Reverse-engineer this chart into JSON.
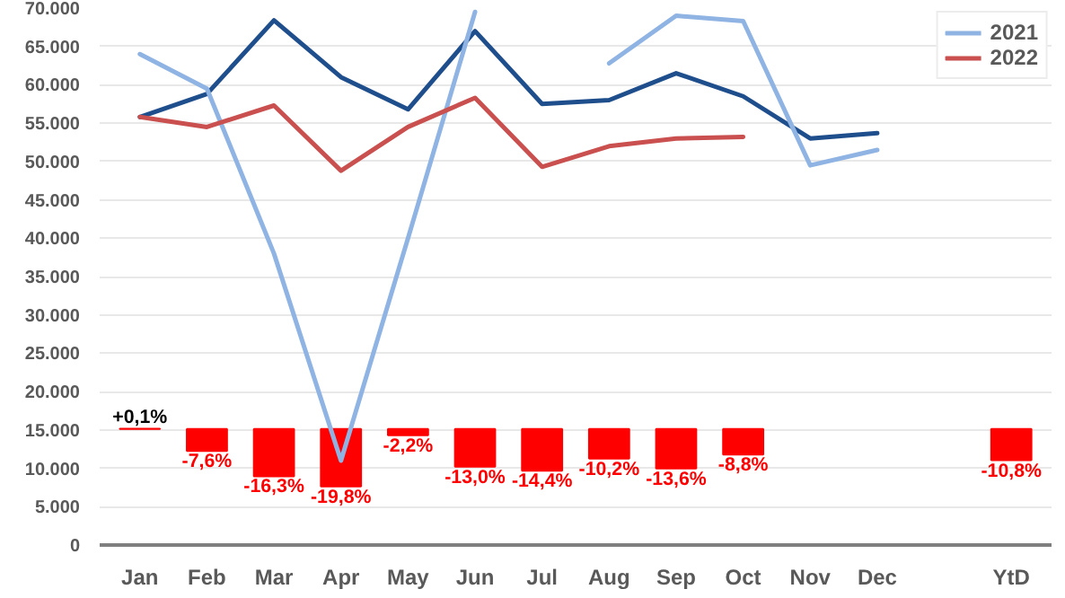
{
  "chart_data": {
    "type": "line",
    "categories": [
      "Jan",
      "Feb",
      "Mar",
      "Apr",
      "May",
      "Jun",
      "Jul",
      "Aug",
      "Sep",
      "Oct",
      "Nov",
      "Dec",
      null,
      "YtD"
    ],
    "series": [
      {
        "type": "bar",
        "axis": "y2",
        "color": "#ff0000",
        "values": [
          0.1,
          -7.6,
          -16.3,
          -19.8,
          -2.2,
          -13.0,
          -14.4,
          -10.2,
          -13.6,
          -8.8,
          null,
          null,
          null,
          -10.8
        ],
        "value_labels": [
          "+0,1%",
          "-7,6%",
          "-16,3%",
          "-19,8%",
          "-2,2%",
          "-13,0%",
          "-14,4%",
          "-10,2%",
          "-13,6%",
          "-8,8%",
          null,
          null,
          null,
          "-10,8%"
        ]
      },
      {
        "color": "#1f4e8c",
        "values": [
          55800,
          58800,
          68400,
          61000,
          56800,
          67000,
          57500,
          58000,
          61500,
          58500,
          53000,
          53700,
          null,
          null
        ]
      },
      {
        "name": "2021",
        "color": "#8fb4e3",
        "values": [
          64000,
          59500,
          38000,
          11000,
          40000,
          69500,
          null,
          62800,
          69000,
          68300,
          49500,
          51500,
          null,
          null
        ]
      },
      {
        "name": "2022",
        "color": "#c9504f",
        "values": [
          55800,
          54500,
          57300,
          48800,
          54500,
          58300,
          49300,
          52000,
          53000,
          53200,
          null,
          null,
          null,
          null
        ]
      }
    ],
    "ylim": [
      0,
      70000
    ],
    "yticks": [
      {
        "value": 0,
        "label": "0"
      },
      {
        "value": 5000,
        "label": "5.000"
      },
      {
        "value": 10000,
        "label": "10.000"
      },
      {
        "value": 15000,
        "label": "15.000"
      },
      {
        "value": 20000,
        "label": "20.000"
      },
      {
        "value": 25000,
        "label": "25.000"
      },
      {
        "value": 30000,
        "label": "30.000"
      },
      {
        "value": 35000,
        "label": "35.000"
      },
      {
        "value": 40000,
        "label": "40.000"
      },
      {
        "value": 45000,
        "label": "45.000"
      },
      {
        "value": 50000,
        "label": "50.000"
      },
      {
        "value": 55000,
        "label": "55.000"
      },
      {
        "value": 60000,
        "label": "60.000"
      },
      {
        "value": 65000,
        "label": "65.000"
      },
      {
        "value": 70000,
        "label": "70.000"
      }
    ],
    "y2lim": [
      -40,
      145
    ],
    "grid": "y",
    "legend": "top right"
  }
}
